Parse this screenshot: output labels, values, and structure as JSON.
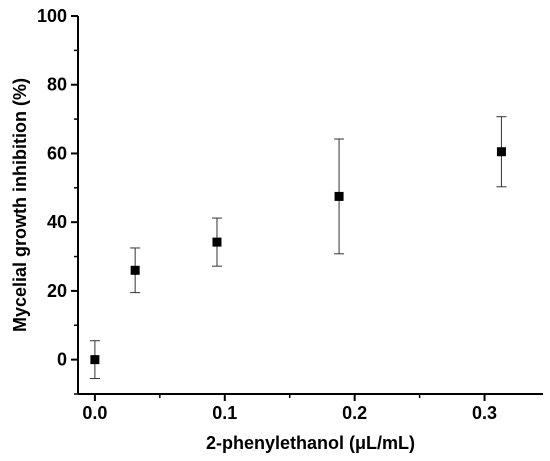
{
  "chart_data": {
    "type": "scatter",
    "xlabel": "2-phenylethanol (μL/mL)",
    "ylabel": "Mycelial growth inhibition (%)",
    "xlim": [
      -0.013,
      0.345
    ],
    "ylim": [
      -10,
      100
    ],
    "x_ticks": [
      0.0,
      0.1,
      0.2,
      0.3
    ],
    "x_tick_labels": [
      "0.0",
      "0.1",
      "0.2",
      "0.3"
    ],
    "y_ticks": [
      0,
      20,
      40,
      60,
      80,
      100
    ],
    "y_tick_labels": [
      "0",
      "20",
      "40",
      "60",
      "80",
      "100"
    ],
    "grid": false,
    "series": [
      {
        "marker": "square",
        "color": "#000000",
        "points": [
          {
            "x": 0.0,
            "y": 0.0,
            "err_low": 5.5,
            "err_high": 5.5
          },
          {
            "x": 0.031,
            "y": 26.0,
            "err_low": 6.5,
            "err_high": 6.5
          },
          {
            "x": 0.094,
            "y": 34.2,
            "err_low": 7.0,
            "err_high": 7.0
          },
          {
            "x": 0.188,
            "y": 47.5,
            "err_low": 16.7,
            "err_high": 16.7
          },
          {
            "x": 0.313,
            "y": 60.5,
            "err_low": 10.2,
            "err_high": 10.2
          }
        ]
      }
    ]
  }
}
